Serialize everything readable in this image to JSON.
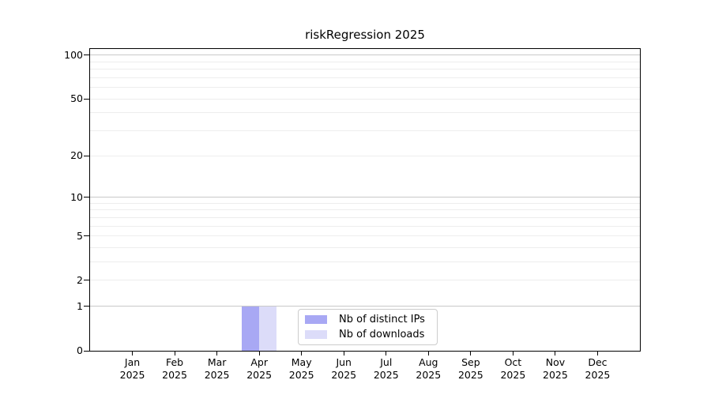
{
  "chart_data": {
    "type": "bar",
    "title": "riskRegression 2025",
    "x_categories": [
      "Jan",
      "Feb",
      "Mar",
      "Apr",
      "May",
      "Jun",
      "Jul",
      "Aug",
      "Sep",
      "Oct",
      "Nov",
      "Dec"
    ],
    "x_year": "2025",
    "series": [
      {
        "name": "Nb of distinct IPs",
        "color": "#a8a8f4",
        "values": [
          0,
          0,
          0,
          1,
          0,
          0,
          0,
          0,
          0,
          0,
          0,
          0
        ]
      },
      {
        "name": "Nb of downloads",
        "color": "#dcdcf9",
        "values": [
          0,
          0,
          0,
          1,
          0,
          0,
          0,
          0,
          0,
          0,
          0,
          0
        ]
      }
    ],
    "y_scale": "log1p",
    "ylim": [
      0,
      110
    ],
    "y_tick_labels": [
      0,
      1,
      2,
      5,
      10,
      20,
      50,
      100
    ],
    "y_major_grid": [
      1,
      10,
      100
    ],
    "y_minor_grid": [
      2,
      3,
      4,
      5,
      6,
      7,
      8,
      9,
      20,
      30,
      40,
      50,
      60,
      70,
      80,
      90
    ],
    "grid": "horizontal",
    "legend_position": "lower-center-inside",
    "colors": {
      "spine": "#000000",
      "major_grid": "#c9c9c9",
      "minor_grid": "#ededed",
      "legend_border": "#cccccc"
    }
  }
}
